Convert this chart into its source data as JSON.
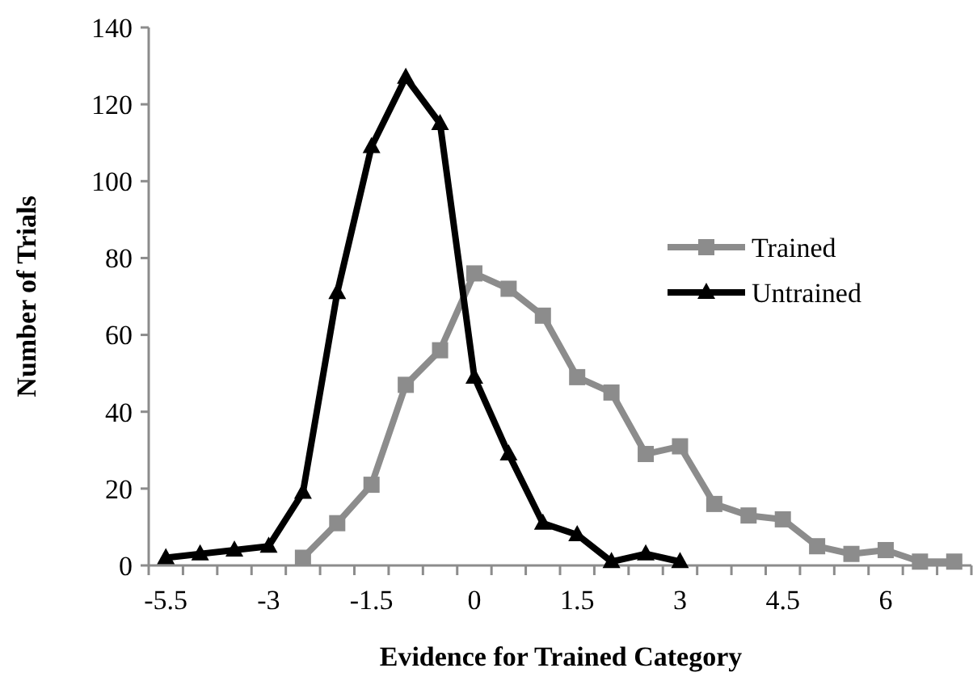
{
  "chart_data": {
    "type": "line",
    "xlabel": "Evidence for Trained Category",
    "ylabel": "Number of Trials",
    "categories": [
      "-5.5",
      null,
      null,
      "-3",
      null,
      null,
      "-1.5",
      null,
      null,
      "0",
      null,
      null,
      "1.5",
      null,
      null,
      "3",
      null,
      null,
      "4.5",
      null,
      null,
      "6",
      null,
      null
    ],
    "series": [
      {
        "name": "Trained",
        "color": "#8c8c8c",
        "marker": "square",
        "values": [
          null,
          null,
          null,
          null,
          2,
          11,
          21,
          47,
          56,
          76,
          72,
          65,
          49,
          45,
          29,
          31,
          16,
          13,
          12,
          5,
          3,
          4,
          1,
          1
        ]
      },
      {
        "name": "Untrained",
        "color": "#000000",
        "marker": "triangle",
        "values": [
          2,
          3,
          4,
          5,
          19,
          71,
          109,
          127,
          115,
          49,
          29,
          11,
          8,
          1,
          3,
          1,
          null,
          null,
          null,
          null,
          null,
          null,
          null,
          null
        ]
      }
    ],
    "ylim": [
      0,
      140
    ],
    "yticks": [
      0,
      20,
      40,
      60,
      80,
      100,
      120,
      140
    ],
    "grid": false,
    "legend": "right",
    "line_style": "solid"
  }
}
